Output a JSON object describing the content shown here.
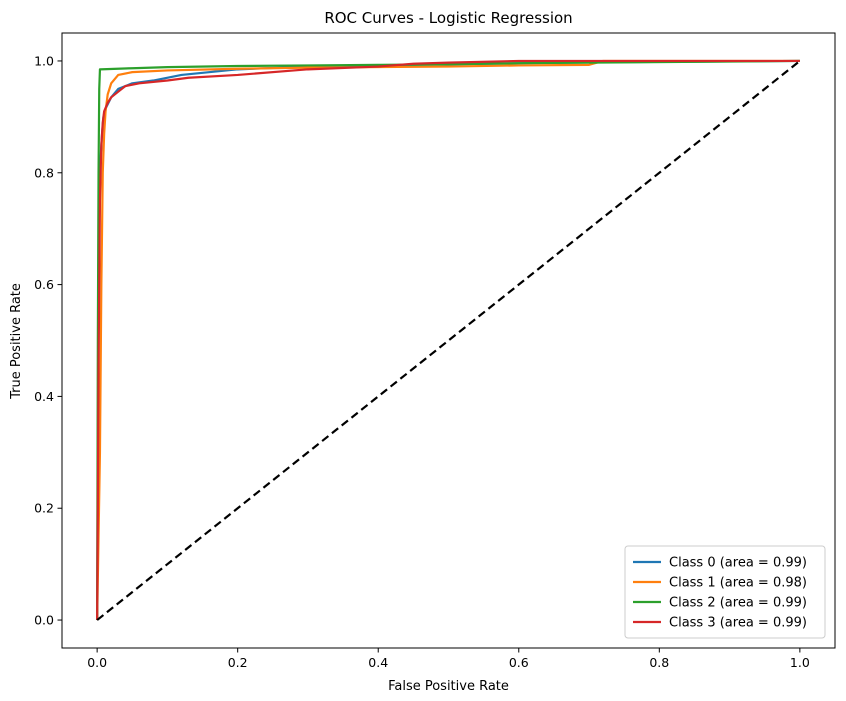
{
  "chart_data": {
    "type": "line",
    "title": "ROC Curves - Logistic Regression",
    "xlabel": "False Positive Rate",
    "ylabel": "True Positive Rate",
    "xlim": [
      -0.05,
      1.05
    ],
    "ylim": [
      -0.05,
      1.05
    ],
    "xticks": [
      0.0,
      0.2,
      0.4,
      0.6,
      0.8,
      1.0
    ],
    "xtick_labels": [
      "0.0",
      "0.2",
      "0.4",
      "0.6",
      "0.8",
      "1.0"
    ],
    "yticks": [
      0.0,
      0.2,
      0.4,
      0.6,
      0.8,
      1.0
    ],
    "ytick_labels": [
      "0.0",
      "0.2",
      "0.4",
      "0.6",
      "0.8",
      "1.0"
    ],
    "grid": false,
    "legend_position": "lower right",
    "series": [
      {
        "name": "Class 0 (area = 0.99)",
        "color": "#1f77b4",
        "x": [
          0,
          0.001,
          0.002,
          0.003,
          0.004,
          0.005,
          0.007,
          0.009,
          0.012,
          0.016,
          0.02,
          0.03,
          0.05,
          0.08,
          0.12,
          0.2,
          0.3,
          0.45,
          0.6,
          0.75,
          1.0
        ],
        "y": [
          0,
          0.3,
          0.55,
          0.7,
          0.78,
          0.83,
          0.87,
          0.9,
          0.915,
          0.925,
          0.935,
          0.95,
          0.96,
          0.965,
          0.975,
          0.985,
          0.99,
          0.993,
          0.996,
          0.998,
          1.0
        ]
      },
      {
        "name": "Class 1 (area = 0.98)",
        "color": "#ff7f0e",
        "x": [
          0,
          0.002,
          0.004,
          0.005,
          0.006,
          0.007,
          0.008,
          0.01,
          0.012,
          0.015,
          0.02,
          0.03,
          0.05,
          0.1,
          0.2,
          0.3,
          0.5,
          0.6,
          0.7,
          0.72,
          1.0
        ],
        "y": [
          0,
          0.15,
          0.3,
          0.45,
          0.6,
          0.7,
          0.8,
          0.87,
          0.91,
          0.94,
          0.96,
          0.975,
          0.98,
          0.983,
          0.986,
          0.988,
          0.99,
          0.992,
          0.993,
          1.0,
          1.0
        ]
      },
      {
        "name": "Class 2 (area = 0.99)",
        "color": "#2ca02c",
        "x": [
          0,
          0.001,
          0.002,
          0.003,
          0.004,
          0.05,
          0.1,
          0.2,
          0.3,
          0.4,
          0.5,
          0.6,
          1.0
        ],
        "y": [
          0,
          0.5,
          0.8,
          0.95,
          0.985,
          0.987,
          0.989,
          0.991,
          0.992,
          0.993,
          0.994,
          0.996,
          1.0
        ]
      },
      {
        "name": "Class 3 (area = 0.99)",
        "color": "#d62728",
        "x": [
          0,
          0.001,
          0.002,
          0.003,
          0.004,
          0.006,
          0.008,
          0.01,
          0.015,
          0.02,
          0.03,
          0.04,
          0.06,
          0.1,
          0.13,
          0.2,
          0.3,
          0.4,
          0.45,
          0.5,
          0.6,
          1.0
        ],
        "y": [
          0,
          0.2,
          0.45,
          0.6,
          0.75,
          0.85,
          0.89,
          0.91,
          0.925,
          0.935,
          0.945,
          0.955,
          0.96,
          0.965,
          0.97,
          0.975,
          0.985,
          0.99,
          0.995,
          0.997,
          1.0,
          1.0
        ]
      },
      {
        "name": "",
        "color": "#000000",
        "dashed": true,
        "x": [
          0,
          1
        ],
        "y": [
          0,
          1
        ]
      }
    ]
  }
}
